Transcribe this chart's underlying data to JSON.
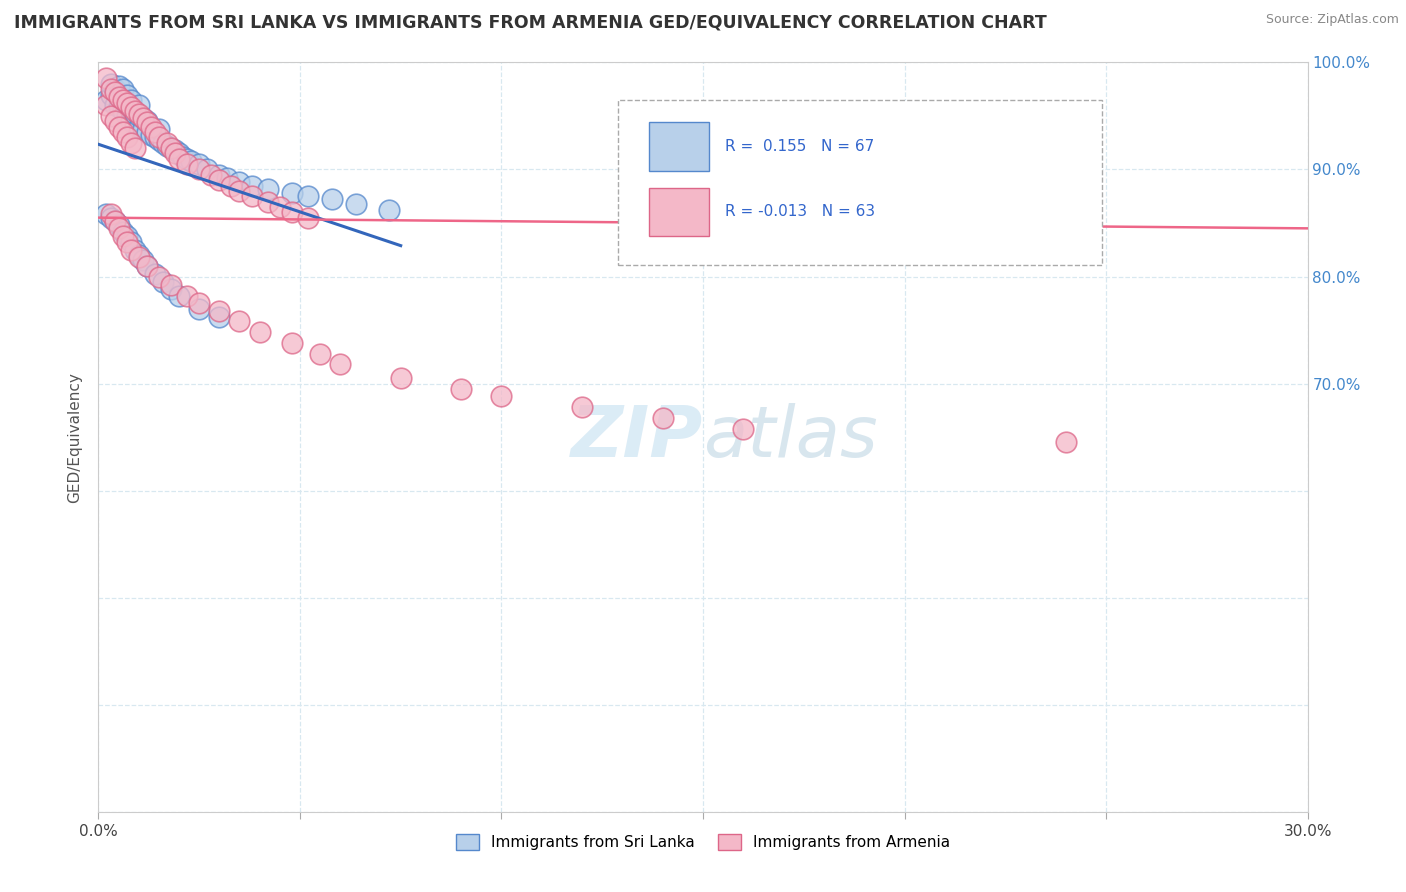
{
  "title": "IMMIGRANTS FROM SRI LANKA VS IMMIGRANTS FROM ARMENIA GED/EQUIVALENCY CORRELATION CHART",
  "source": "Source: ZipAtlas.com",
  "ylabel": "GED/Equivalency",
  "xlim": [
    0.0,
    0.3
  ],
  "ylim": [
    0.3,
    1.0
  ],
  "ytick_positions": [
    0.3,
    0.4,
    0.5,
    0.6,
    0.7,
    0.8,
    0.9,
    1.0
  ],
  "ytick_labels": [
    "",
    "",
    "",
    "",
    "70.0%",
    "80.0%",
    "90.0%",
    "100.0%"
  ],
  "xtick_positions": [
    0.0,
    0.05,
    0.1,
    0.15,
    0.2,
    0.25,
    0.3
  ],
  "xtick_labels": [
    "0.0%",
    "",
    "",
    "",
    "",
    "",
    "30.0%"
  ],
  "sri_lanka_color": "#b8d0ea",
  "armenia_color": "#f4b8c8",
  "sri_lanka_edge": "#5588cc",
  "armenia_edge": "#dd6688",
  "trend_blue": "#3366bb",
  "trend_pink": "#ee6688",
  "legend_label1": "Immigrants from Sri Lanka",
  "legend_label2": "Immigrants from Armenia",
  "watermark_color": "#d8eaf5",
  "grid_color": "#d8e8f0",
  "sri_lanka_x": [
    0.002,
    0.003,
    0.003,
    0.004,
    0.004,
    0.005,
    0.005,
    0.005,
    0.006,
    0.006,
    0.006,
    0.007,
    0.007,
    0.007,
    0.008,
    0.008,
    0.008,
    0.009,
    0.009,
    0.01,
    0.01,
    0.01,
    0.011,
    0.011,
    0.012,
    0.012,
    0.013,
    0.014,
    0.015,
    0.015,
    0.016,
    0.017,
    0.018,
    0.019,
    0.02,
    0.021,
    0.022,
    0.023,
    0.025,
    0.027,
    0.03,
    0.032,
    0.035,
    0.038,
    0.042,
    0.048,
    0.052,
    0.058,
    0.064,
    0.072,
    0.002,
    0.003,
    0.004,
    0.005,
    0.006,
    0.007,
    0.008,
    0.009,
    0.01,
    0.011,
    0.012,
    0.014,
    0.016,
    0.018,
    0.02,
    0.025,
    0.03
  ],
  "sri_lanka_y": [
    0.965,
    0.97,
    0.98,
    0.975,
    0.96,
    0.958,
    0.968,
    0.978,
    0.955,
    0.965,
    0.975,
    0.95,
    0.96,
    0.97,
    0.945,
    0.955,
    0.965,
    0.942,
    0.952,
    0.94,
    0.95,
    0.96,
    0.938,
    0.948,
    0.935,
    0.945,
    0.932,
    0.93,
    0.928,
    0.938,
    0.925,
    0.922,
    0.92,
    0.918,
    0.915,
    0.912,
    0.91,
    0.908,
    0.905,
    0.9,
    0.895,
    0.892,
    0.888,
    0.885,
    0.882,
    0.878,
    0.875,
    0.872,
    0.868,
    0.862,
    0.858,
    0.855,
    0.852,
    0.848,
    0.842,
    0.838,
    0.832,
    0.825,
    0.82,
    0.815,
    0.81,
    0.802,
    0.795,
    0.788,
    0.782,
    0.77,
    0.762
  ],
  "armenia_x": [
    0.002,
    0.002,
    0.003,
    0.003,
    0.004,
    0.004,
    0.005,
    0.005,
    0.006,
    0.006,
    0.007,
    0.007,
    0.008,
    0.008,
    0.009,
    0.009,
    0.01,
    0.011,
    0.012,
    0.013,
    0.014,
    0.015,
    0.017,
    0.018,
    0.019,
    0.02,
    0.022,
    0.025,
    0.028,
    0.03,
    0.033,
    0.035,
    0.038,
    0.042,
    0.045,
    0.048,
    0.052,
    0.003,
    0.004,
    0.005,
    0.006,
    0.007,
    0.008,
    0.01,
    0.012,
    0.015,
    0.018,
    0.022,
    0.025,
    0.03,
    0.035,
    0.04,
    0.048,
    0.055,
    0.06,
    0.075,
    0.09,
    0.1,
    0.12,
    0.14,
    0.16,
    0.24
  ],
  "armenia_y": [
    0.985,
    0.96,
    0.975,
    0.95,
    0.972,
    0.945,
    0.968,
    0.94,
    0.965,
    0.935,
    0.962,
    0.93,
    0.958,
    0.925,
    0.955,
    0.92,
    0.952,
    0.948,
    0.944,
    0.94,
    0.935,
    0.93,
    0.925,
    0.92,
    0.915,
    0.91,
    0.905,
    0.9,
    0.895,
    0.89,
    0.885,
    0.88,
    0.875,
    0.87,
    0.865,
    0.86,
    0.855,
    0.858,
    0.852,
    0.845,
    0.838,
    0.832,
    0.825,
    0.818,
    0.81,
    0.8,
    0.792,
    0.782,
    0.775,
    0.768,
    0.758,
    0.748,
    0.738,
    0.728,
    0.718,
    0.705,
    0.695,
    0.688,
    0.678,
    0.668,
    0.658,
    0.645
  ]
}
